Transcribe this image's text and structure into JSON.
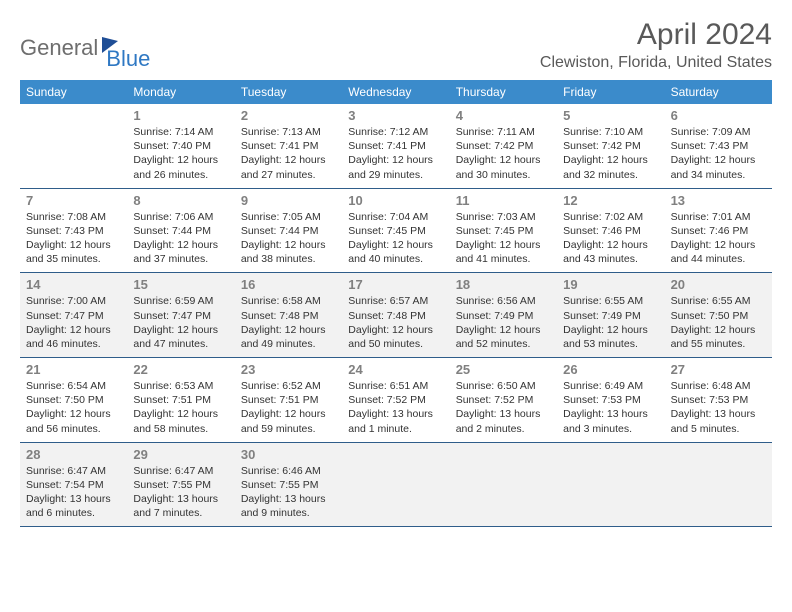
{
  "brand": {
    "part1": "General",
    "part2": "Blue"
  },
  "title": "April 2024",
  "location": "Clewiston, Florida, United States",
  "colors": {
    "header_bg": "#3b8bcb",
    "header_text": "#ffffff",
    "border": "#2f5d8a",
    "daynum": "#808080",
    "shaded_bg": "#f2f2f2",
    "title_color": "#595959",
    "logo_gray": "#6e6e6e",
    "logo_blue": "#2f78c3"
  },
  "weekdays": [
    "Sunday",
    "Monday",
    "Tuesday",
    "Wednesday",
    "Thursday",
    "Friday",
    "Saturday"
  ],
  "shaded_rows": [
    2,
    4
  ],
  "start_weekday": 1,
  "days": [
    {
      "n": 1,
      "sr": "7:14 AM",
      "ss": "7:40 PM",
      "dl": "12 hours and 26 minutes."
    },
    {
      "n": 2,
      "sr": "7:13 AM",
      "ss": "7:41 PM",
      "dl": "12 hours and 27 minutes."
    },
    {
      "n": 3,
      "sr": "7:12 AM",
      "ss": "7:41 PM",
      "dl": "12 hours and 29 minutes."
    },
    {
      "n": 4,
      "sr": "7:11 AM",
      "ss": "7:42 PM",
      "dl": "12 hours and 30 minutes."
    },
    {
      "n": 5,
      "sr": "7:10 AM",
      "ss": "7:42 PM",
      "dl": "12 hours and 32 minutes."
    },
    {
      "n": 6,
      "sr": "7:09 AM",
      "ss": "7:43 PM",
      "dl": "12 hours and 34 minutes."
    },
    {
      "n": 7,
      "sr": "7:08 AM",
      "ss": "7:43 PM",
      "dl": "12 hours and 35 minutes."
    },
    {
      "n": 8,
      "sr": "7:06 AM",
      "ss": "7:44 PM",
      "dl": "12 hours and 37 minutes."
    },
    {
      "n": 9,
      "sr": "7:05 AM",
      "ss": "7:44 PM",
      "dl": "12 hours and 38 minutes."
    },
    {
      "n": 10,
      "sr": "7:04 AM",
      "ss": "7:45 PM",
      "dl": "12 hours and 40 minutes."
    },
    {
      "n": 11,
      "sr": "7:03 AM",
      "ss": "7:45 PM",
      "dl": "12 hours and 41 minutes."
    },
    {
      "n": 12,
      "sr": "7:02 AM",
      "ss": "7:46 PM",
      "dl": "12 hours and 43 minutes."
    },
    {
      "n": 13,
      "sr": "7:01 AM",
      "ss": "7:46 PM",
      "dl": "12 hours and 44 minutes."
    },
    {
      "n": 14,
      "sr": "7:00 AM",
      "ss": "7:47 PM",
      "dl": "12 hours and 46 minutes."
    },
    {
      "n": 15,
      "sr": "6:59 AM",
      "ss": "7:47 PM",
      "dl": "12 hours and 47 minutes."
    },
    {
      "n": 16,
      "sr": "6:58 AM",
      "ss": "7:48 PM",
      "dl": "12 hours and 49 minutes."
    },
    {
      "n": 17,
      "sr": "6:57 AM",
      "ss": "7:48 PM",
      "dl": "12 hours and 50 minutes."
    },
    {
      "n": 18,
      "sr": "6:56 AM",
      "ss": "7:49 PM",
      "dl": "12 hours and 52 minutes."
    },
    {
      "n": 19,
      "sr": "6:55 AM",
      "ss": "7:49 PM",
      "dl": "12 hours and 53 minutes."
    },
    {
      "n": 20,
      "sr": "6:55 AM",
      "ss": "7:50 PM",
      "dl": "12 hours and 55 minutes."
    },
    {
      "n": 21,
      "sr": "6:54 AM",
      "ss": "7:50 PM",
      "dl": "12 hours and 56 minutes."
    },
    {
      "n": 22,
      "sr": "6:53 AM",
      "ss": "7:51 PM",
      "dl": "12 hours and 58 minutes."
    },
    {
      "n": 23,
      "sr": "6:52 AM",
      "ss": "7:51 PM",
      "dl": "12 hours and 59 minutes."
    },
    {
      "n": 24,
      "sr": "6:51 AM",
      "ss": "7:52 PM",
      "dl": "13 hours and 1 minute."
    },
    {
      "n": 25,
      "sr": "6:50 AM",
      "ss": "7:52 PM",
      "dl": "13 hours and 2 minutes."
    },
    {
      "n": 26,
      "sr": "6:49 AM",
      "ss": "7:53 PM",
      "dl": "13 hours and 3 minutes."
    },
    {
      "n": 27,
      "sr": "6:48 AM",
      "ss": "7:53 PM",
      "dl": "13 hours and 5 minutes."
    },
    {
      "n": 28,
      "sr": "6:47 AM",
      "ss": "7:54 PM",
      "dl": "13 hours and 6 minutes."
    },
    {
      "n": 29,
      "sr": "6:47 AM",
      "ss": "7:55 PM",
      "dl": "13 hours and 7 minutes."
    },
    {
      "n": 30,
      "sr": "6:46 AM",
      "ss": "7:55 PM",
      "dl": "13 hours and 9 minutes."
    }
  ],
  "labels": {
    "sunrise": "Sunrise:",
    "sunset": "Sunset:",
    "daylight": "Daylight:"
  }
}
